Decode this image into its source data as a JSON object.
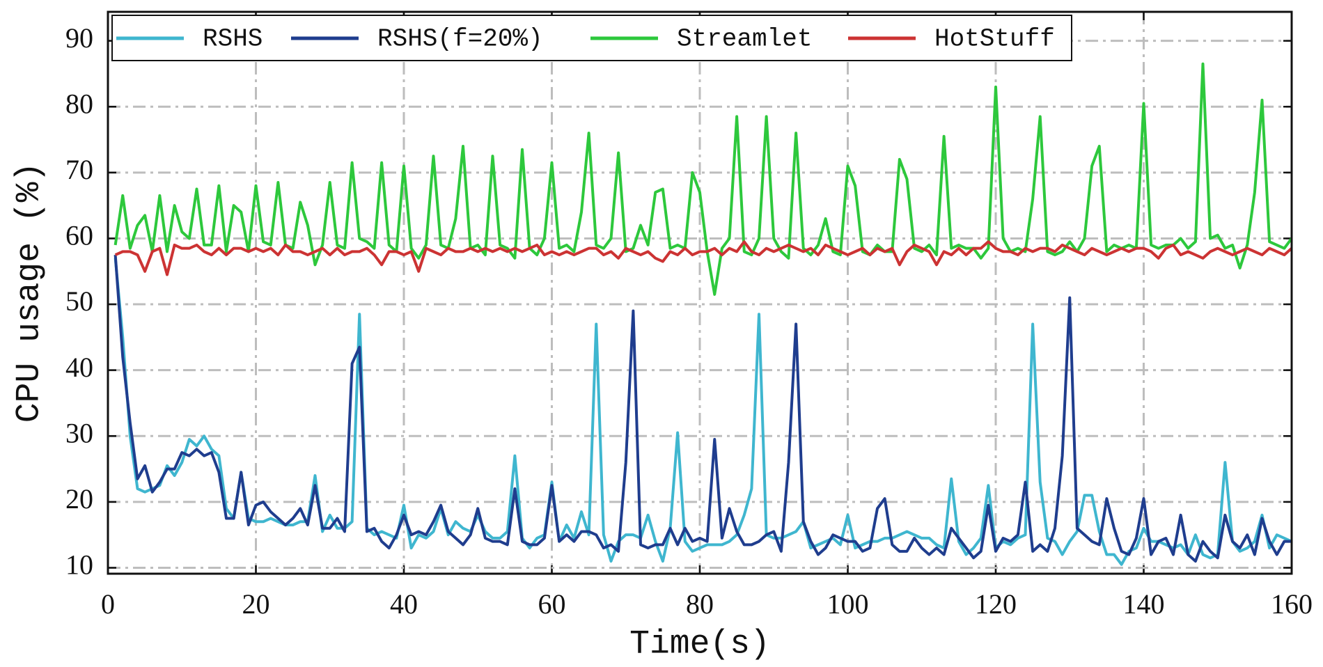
{
  "chart_data": {
    "type": "line",
    "xlabel": "Time(s)",
    "ylabel": "CPU usage (%)",
    "xlim": [
      0,
      160
    ],
    "xticks": [
      0,
      20,
      40,
      60,
      80,
      100,
      120,
      140,
      160
    ],
    "ylim": [
      9.1,
      94.4
    ],
    "yticks": [
      10,
      20,
      30,
      40,
      50,
      60,
      70,
      80,
      90
    ],
    "grid": true,
    "legend": "upper left",
    "x": [
      1,
      2,
      3,
      4,
      5,
      6,
      7,
      8,
      9,
      10,
      11,
      12,
      13,
      14,
      15,
      16,
      17,
      18,
      19,
      20,
      21,
      22,
      23,
      24,
      25,
      26,
      27,
      28,
      29,
      30,
      31,
      32,
      33,
      34,
      35,
      36,
      37,
      38,
      39,
      40,
      41,
      42,
      43,
      44,
      45,
      46,
      47,
      48,
      49,
      50,
      51,
      52,
      53,
      54,
      55,
      56,
      57,
      58,
      59,
      60,
      61,
      62,
      63,
      64,
      65,
      66,
      67,
      68,
      69,
      70,
      71,
      72,
      73,
      74,
      75,
      76,
      77,
      78,
      79,
      80,
      81,
      82,
      83,
      84,
      85,
      86,
      87,
      88,
      89,
      90,
      91,
      92,
      93,
      94,
      95,
      96,
      97,
      98,
      99,
      100,
      101,
      102,
      103,
      104,
      105,
      106,
      107,
      108,
      109,
      110,
      111,
      112,
      113,
      114,
      115,
      116,
      117,
      118,
      119,
      120,
      121,
      122,
      123,
      124,
      125,
      126,
      127,
      128,
      129,
      130,
      131,
      132,
      133,
      134,
      135,
      136,
      137,
      138,
      139,
      140,
      141,
      142,
      143,
      144,
      145,
      146,
      147,
      148,
      149,
      150,
      151,
      152,
      153,
      154,
      155,
      156,
      157,
      158,
      159,
      160
    ],
    "series": [
      {
        "name": "RSHS",
        "color": "#3fb6cf",
        "values": [
          57,
          45,
          30,
          22,
          21.5,
          22,
          22.5,
          25.5,
          24,
          26,
          29.5,
          28.5,
          30,
          28,
          27,
          19,
          17.5,
          24.5,
          17.5,
          17,
          17,
          17.5,
          17,
          16.5,
          16.5,
          17,
          17,
          24,
          15.5,
          18,
          16,
          16,
          17,
          48.5,
          16,
          15,
          15.5,
          15,
          14.5,
          19.5,
          13,
          15,
          14.5,
          15.5,
          19,
          15,
          17,
          16,
          15.5,
          18,
          15.5,
          14.5,
          14.5,
          15.5,
          27,
          14.5,
          13,
          14.5,
          15,
          23,
          14,
          16.5,
          14.5,
          18.5,
          15,
          47,
          15,
          11,
          14,
          15,
          15,
          14.5,
          18,
          14,
          11,
          16,
          30.5,
          14,
          12.5,
          13,
          13.5,
          13.5,
          13.5,
          14,
          15,
          18,
          22,
          48.5,
          15,
          14.5,
          14.5,
          15,
          15.5,
          17,
          13,
          13.5,
          14,
          14.5,
          13.5,
          18,
          13,
          13.5,
          14,
          14,
          14.5,
          14.5,
          15,
          15.5,
          15,
          14.5,
          14.5,
          13.5,
          13,
          23.5,
          14,
          12,
          13,
          14.5,
          22.5,
          13,
          14,
          13.5,
          14.5,
          15,
          47,
          23,
          14.5,
          14,
          12,
          14,
          15.5,
          21,
          21,
          15.5,
          12,
          12,
          10.5,
          12.5,
          13,
          16,
          14,
          14,
          13.5,
          13,
          13.5,
          12,
          15,
          12,
          11.5,
          12,
          26,
          14,
          12.5,
          13,
          14,
          18,
          13,
          15,
          14.5,
          14
        ]
      },
      {
        "name": "RSHS(f=20%)",
        "color": "#1f3d8e",
        "values": [
          57.5,
          42,
          32,
          23.5,
          25.5,
          21.5,
          23,
          25,
          25,
          27.5,
          27,
          28,
          27,
          27.5,
          24.5,
          17.5,
          17.5,
          24.5,
          16.5,
          19.5,
          20,
          18.5,
          17.5,
          16.5,
          17.5,
          19,
          16.5,
          22.5,
          16,
          16,
          17.5,
          15.5,
          41,
          43.5,
          15.5,
          16,
          14,
          13,
          15,
          18,
          15,
          15.5,
          15,
          17,
          19.5,
          15.5,
          14.5,
          13.5,
          15,
          19,
          14.5,
          14,
          14,
          13.5,
          22,
          14,
          13.5,
          13.5,
          14.5,
          22.5,
          14,
          15,
          14,
          15.5,
          15.5,
          15,
          13,
          13.5,
          12.5,
          26,
          49,
          13.5,
          13,
          13.5,
          13.5,
          16,
          13.5,
          16,
          14,
          14.5,
          14,
          29.5,
          14.5,
          19,
          15.5,
          13.5,
          13.5,
          14,
          15,
          15.5,
          12.5,
          26,
          47,
          17,
          14,
          12,
          13,
          15,
          14.5,
          14,
          14,
          12.5,
          13,
          19,
          20.5,
          13.5,
          12.5,
          12.5,
          14.5,
          13,
          12,
          13,
          12,
          16,
          14.5,
          13,
          11.5,
          12.5,
          19.5,
          12.5,
          14.5,
          14,
          15,
          23,
          12.5,
          13.5,
          12.5,
          16,
          27,
          51,
          16,
          15,
          14,
          13.5,
          20.5,
          16,
          12.5,
          12,
          14.5,
          20.5,
          12,
          14,
          14.5,
          12,
          18,
          12,
          11,
          14,
          12.5,
          11.5,
          18,
          14,
          13,
          15,
          12,
          17.5,
          14,
          12,
          14,
          14
        ]
      },
      {
        "name": "Streamlet",
        "color": "#2dc83c",
        "values": [
          59,
          66.5,
          58.5,
          62,
          63.5,
          58,
          66.5,
          58,
          65,
          61,
          60,
          67.5,
          59,
          59,
          68,
          58,
          65,
          64,
          58,
          68,
          59.5,
          59,
          68.5,
          59,
          58.5,
          65.5,
          62,
          56,
          59,
          68.5,
          59,
          58.5,
          71.5,
          60,
          59.5,
          58.5,
          71.5,
          59,
          58,
          71,
          58.5,
          57,
          59,
          72.5,
          59,
          58.5,
          63,
          74,
          58.5,
          59,
          57.5,
          72.5,
          59,
          58.5,
          57,
          73.5,
          58.5,
          57.5,
          60,
          71.5,
          58.5,
          59,
          58,
          64,
          76,
          59,
          58.5,
          60,
          73,
          58,
          58.5,
          62,
          59,
          67,
          67.5,
          58.5,
          59,
          58.5,
          70,
          67,
          58,
          51.5,
          58.5,
          60,
          78.5,
          58,
          57.5,
          60,
          78.5,
          60,
          58,
          57,
          76,
          58.5,
          57.5,
          59,
          63,
          58,
          57.5,
          71,
          68,
          58,
          57.5,
          59,
          58,
          58,
          72,
          69,
          58.5,
          58,
          59,
          57.5,
          75.5,
          58.5,
          59,
          58.5,
          58.5,
          57,
          58.5,
          83,
          60,
          58,
          58.5,
          58,
          66,
          78.5,
          58,
          57.5,
          58,
          59.5,
          58,
          60,
          71,
          74,
          58,
          59,
          58.5,
          59,
          58.5,
          80.5,
          59,
          58.5,
          59,
          59,
          60,
          58.5,
          59.5,
          86.5,
          60,
          60.5,
          58.5,
          59,
          55.5,
          59,
          67,
          81,
          59.5,
          59,
          58.5,
          60
        ]
      },
      {
        "name": "HotStuff",
        "color": "#cc3333",
        "values": [
          57.5,
          58,
          58,
          57.5,
          55,
          58,
          58.5,
          54.5,
          59,
          58.5,
          58.5,
          59,
          58,
          57.5,
          58.5,
          57.5,
          58.5,
          58.5,
          58,
          58.5,
          58,
          58.5,
          57.5,
          59,
          58,
          58,
          57.5,
          58,
          58.5,
          57.5,
          58.5,
          57.5,
          58,
          58,
          58.5,
          57.5,
          56,
          58,
          58,
          57.5,
          58,
          55,
          58.5,
          58,
          57.5,
          58.5,
          58,
          58,
          58.5,
          58,
          58.5,
          58,
          58.5,
          58,
          58.5,
          58,
          58.5,
          59,
          57.5,
          58,
          57.5,
          58,
          57.5,
          58,
          58.5,
          58.5,
          57.5,
          58,
          57,
          58.5,
          58,
          57.5,
          58,
          57,
          56.5,
          58,
          57.5,
          58.5,
          57.5,
          58,
          58,
          58.5,
          57.5,
          58.5,
          58,
          59.5,
          58,
          57.5,
          58.5,
          58,
          58.5,
          59,
          58.5,
          58,
          58.5,
          57.5,
          59,
          58.5,
          58,
          57.5,
          58,
          58.5,
          57.5,
          58.5,
          58,
          58.5,
          56,
          58,
          59,
          58.5,
          58,
          56,
          58,
          57.5,
          58.5,
          57.5,
          58.5,
          58.5,
          59.5,
          58.5,
          58,
          58,
          57.5,
          58.5,
          58,
          58.5,
          58.5,
          58,
          59,
          58.5,
          58,
          57.5,
          58.5,
          58,
          57.5,
          58,
          58.5,
          58,
          58.5,
          58.5,
          58,
          57,
          58.5,
          59,
          57.5,
          58,
          57.5,
          57,
          58,
          58.5,
          58,
          57.5,
          58,
          58.5,
          58,
          57.5,
          58.5,
          58,
          57.5,
          58.5
        ]
      }
    ]
  }
}
